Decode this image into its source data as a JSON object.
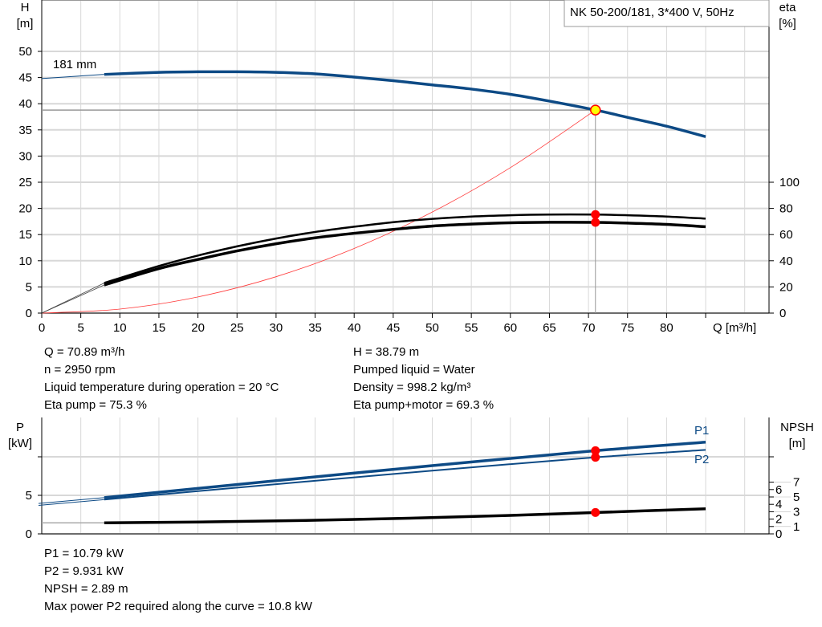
{
  "chart_data": [
    {
      "type": "line",
      "title": "NK 50-200/181, 3*400 V, 50Hz",
      "xlabel": "Q [m³/h]",
      "ylabel": "H",
      "ylabel_unit": "[m]",
      "y2label": "eta",
      "y2label_unit": "[%]",
      "xlim": [
        0,
        90
      ],
      "ylim": [
        0,
        50
      ],
      "y2lim": [
        0,
        100
      ],
      "xticks": [
        "0",
        "5",
        "10",
        "15",
        "20",
        "25",
        "30",
        "35",
        "40",
        "45",
        "50",
        "55",
        "60",
        "65",
        "70",
        "75",
        "80"
      ],
      "yticks": [
        "0",
        "5",
        "10",
        "15",
        "20",
        "25",
        "30",
        "35",
        "40",
        "45",
        "50"
      ],
      "y2ticks": [
        "0",
        "20",
        "40",
        "60",
        "80",
        "100"
      ],
      "grid": true,
      "annotation": "181 mm",
      "operating_point": {
        "q": 70.89,
        "h": 38.79,
        "eta_pump": 75.3,
        "eta_total": 69.3
      },
      "series": [
        {
          "key": "H",
          "axis": "y",
          "color": "#0d4a85",
          "x": [
            8,
            15,
            20,
            25,
            30,
            35,
            40,
            45,
            50,
            55,
            60,
            65,
            70.89,
            75,
            80,
            85
          ],
          "values": [
            45.6,
            46.0,
            46.1,
            46.1,
            46.0,
            45.7,
            45.1,
            44.4,
            43.6,
            42.8,
            41.8,
            40.5,
            38.79,
            37.4,
            35.7,
            33.7
          ]
        },
        {
          "key": "eta_pump",
          "axis": "y2",
          "color": "#000000",
          "x": [
            8,
            15,
            20,
            25,
            30,
            35,
            40,
            45,
            50,
            55,
            60,
            65,
            70.89,
            75,
            80,
            85
          ],
          "values": [
            23,
            36,
            44,
            51,
            57,
            62,
            66,
            69.5,
            72,
            73.8,
            74.8,
            75.3,
            75.3,
            74.8,
            73.8,
            72.2
          ]
        },
        {
          "key": "eta_total",
          "axis": "y2",
          "color": "#000000",
          "x": [
            8,
            15,
            20,
            25,
            30,
            35,
            40,
            45,
            50,
            55,
            60,
            65,
            70.89,
            75,
            80,
            85
          ],
          "values": [
            21.5,
            34,
            41,
            47.5,
            53,
            57.5,
            61,
            64,
            66.5,
            68,
            69,
            69.4,
            69.3,
            68.8,
            67.8,
            66
          ]
        },
        {
          "key": "system",
          "axis": "y",
          "color": "#ff3b3b",
          "x": [
            0,
            10,
            20,
            30,
            40,
            50,
            60,
            70.89
          ],
          "values": [
            0,
            0.77,
            3.09,
            6.95,
            12.35,
            19.3,
            27.79,
            38.79
          ]
        }
      ]
    },
    {
      "type": "line",
      "ylabel": "P",
      "ylabel_unit": "[kW]",
      "y2label": "NPSH",
      "y2label_unit": "[m]",
      "xlim": [
        0,
        90
      ],
      "ylim": [
        0,
        14
      ],
      "yticks": [
        "0",
        "5"
      ],
      "y2ticks": [
        "0",
        "1",
        "2",
        "3",
        "4",
        "5",
        "6",
        "7"
      ],
      "grid": true,
      "series": [
        {
          "name": "P1",
          "key": "P1",
          "axis": "y",
          "color": "#0d4a85",
          "x": [
            8,
            30,
            50,
            70.89,
            85
          ],
          "values": [
            4.7,
            6.9,
            8.85,
            10.79,
            11.9
          ]
        },
        {
          "name": "P2",
          "key": "P2",
          "axis": "y",
          "color": "#0d4a85",
          "x": [
            8,
            30,
            50,
            70.89,
            85
          ],
          "values": [
            4.45,
            6.45,
            8.2,
            9.931,
            10.9
          ]
        },
        {
          "key": "NPSH",
          "axis": "y2",
          "color": "#000000",
          "x": [
            8,
            20,
            40,
            60,
            70.89,
            85
          ],
          "values": [
            1.5,
            1.6,
            1.95,
            2.5,
            2.89,
            3.4
          ]
        }
      ]
    }
  ],
  "info_top": {
    "left": [
      "Q = 70.89 m³/h",
      "n = 2950 rpm",
      "Liquid temperature during operation = 20 °C",
      "Eta pump = 75.3 %"
    ],
    "right": [
      "H = 38.79 m",
      "Pumped liquid = Water",
      "Density = 998.2 kg/m³",
      "Eta pump+motor = 69.3 %"
    ]
  },
  "info_bottom": [
    "P1 = 10.79 kW",
    "P2 = 9.931 kW",
    "NPSH = 2.89 m",
    "Max power P2 required along the curve = 10.8 kW"
  ],
  "colors": {
    "head": "#0d4a85",
    "marker": "#ff0000",
    "op_fill": "#ffff00",
    "grid": "#d8d8d8"
  }
}
